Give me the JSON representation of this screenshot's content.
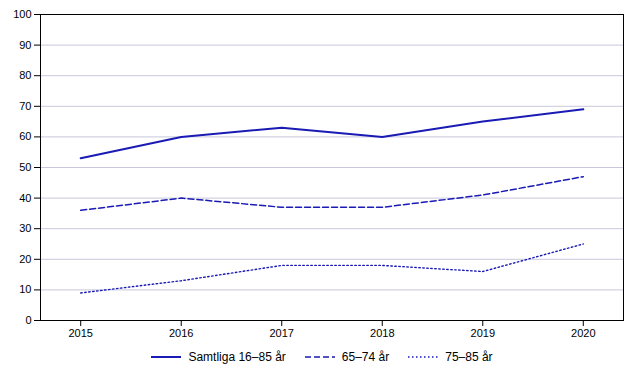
{
  "chart_data": {
    "type": "line",
    "x": [
      2015,
      2016,
      2017,
      2018,
      2019,
      2020
    ],
    "series": [
      {
        "name": "Samtliga 16–85 år",
        "color": "#1a1ab4",
        "line_style": "solid",
        "values": [
          53,
          60,
          63,
          60,
          65,
          69
        ]
      },
      {
        "name": "65–74 år",
        "color": "#1a1ab4",
        "line_style": "dashed",
        "values": [
          36,
          40,
          37,
          37,
          41,
          47
        ]
      },
      {
        "name": "75–85 år",
        "color": "#1a1ab4",
        "line_style": "dotted",
        "values": [
          9,
          13,
          18,
          18,
          16,
          25
        ]
      }
    ],
    "xlim": [
      2014.6,
      2020.4
    ],
    "xticks": [
      2015,
      2016,
      2017,
      2018,
      2019,
      2020
    ],
    "ylim": [
      0,
      100
    ],
    "yticks": [
      0,
      10,
      20,
      30,
      40,
      50,
      60,
      70,
      80,
      90,
      100
    ],
    "grid": "y",
    "legend": "bottom"
  }
}
